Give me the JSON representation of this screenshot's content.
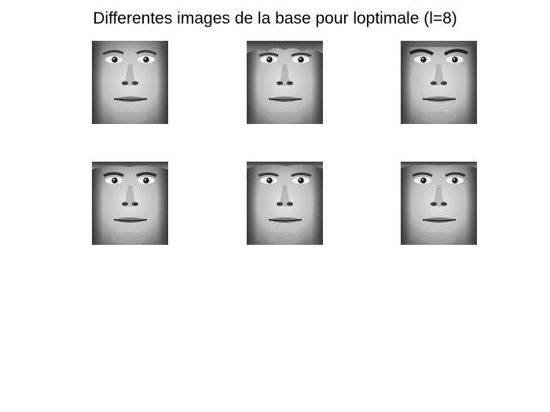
{
  "figure": {
    "title": "Differentes images de la base pour loptimale (l=8)",
    "background": "#ffffff",
    "images": [
      {
        "id": 1,
        "description": "grayscale face"
      },
      {
        "id": 2,
        "description": "grayscale face"
      },
      {
        "id": 3,
        "description": "grayscale face"
      },
      {
        "id": 4,
        "description": "grayscale face"
      },
      {
        "id": 5,
        "description": "grayscale face"
      },
      {
        "id": 6,
        "description": "grayscale face"
      }
    ]
  }
}
